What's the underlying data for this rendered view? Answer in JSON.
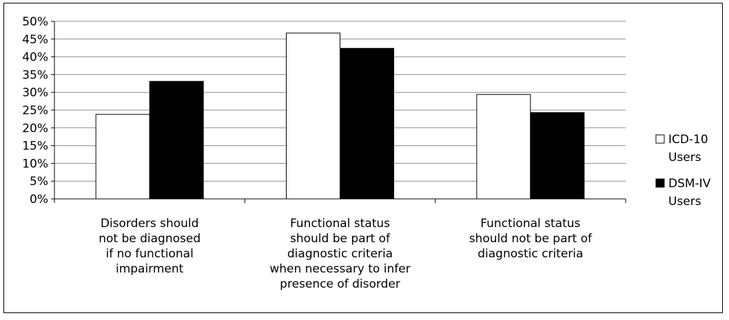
{
  "chart_data": {
    "type": "bar",
    "title": "",
    "xlabel": "",
    "ylabel": "",
    "ylim": [
      0,
      50
    ],
    "yticks": [
      "0%",
      "5%",
      "10%",
      "15%",
      "20%",
      "25%",
      "30%",
      "35%",
      "40%",
      "45%",
      "50%"
    ],
    "grid": true,
    "legend_position": "right",
    "categories": [
      [
        "Disorders should",
        "not be diagnosed",
        "if no functional",
        "impairment"
      ],
      [
        "Functional status",
        "should be part of",
        "diagnostic criteria",
        "when necessary to infer",
        "presence of disorder"
      ],
      [
        "Functional status",
        "should not be part of",
        "diagnostic criteria"
      ]
    ],
    "series": [
      {
        "name": [
          "ICD-10",
          "Users"
        ],
        "color": "#ffffff",
        "values": [
          23.8,
          46.7,
          29.4
        ]
      },
      {
        "name": [
          "DSM-IV",
          "Users"
        ],
        "color": "#000000",
        "values": [
          33.1,
          42.4,
          24.3
        ]
      }
    ]
  }
}
